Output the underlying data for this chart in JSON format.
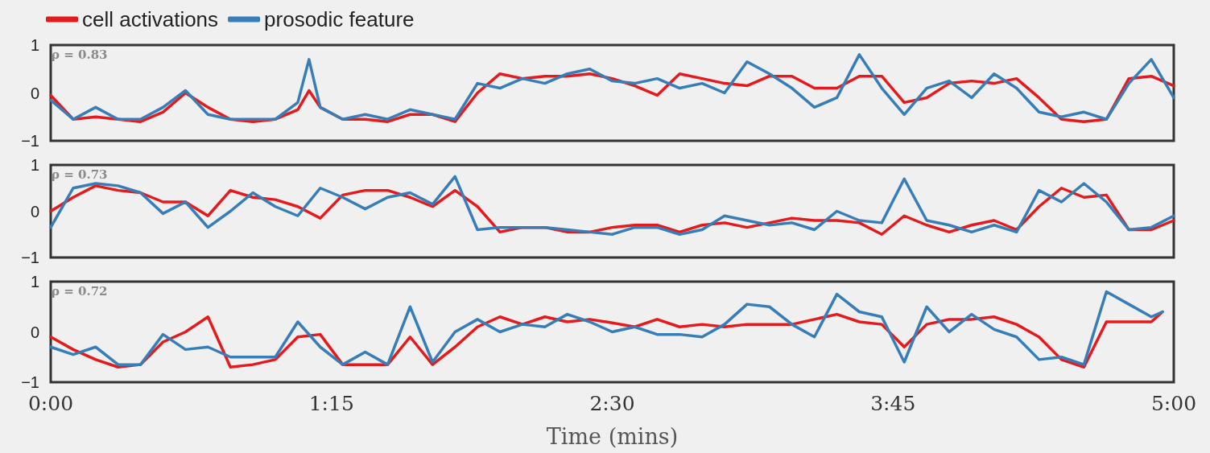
{
  "chart_data": [
    {
      "type": "line",
      "legend": "top left",
      "marker": "none",
      "line_style": "solid",
      "tick_labels": "y",
      "annotations": [
        "ρ = 0.83"
      ],
      "x": [
        0,
        0.1,
        0.2,
        0.3,
        0.4,
        0.5,
        0.6,
        0.7,
        0.8,
        0.9,
        1.0,
        1.1,
        1.15,
        1.2,
        1.3,
        1.4,
        1.5,
        1.6,
        1.7,
        1.8,
        1.9,
        2.0,
        2.1,
        2.2,
        2.3,
        2.4,
        2.5,
        2.6,
        2.7,
        2.8,
        2.9,
        3.0,
        3.1,
        3.2,
        3.3,
        3.4,
        3.5,
        3.6,
        3.7,
        3.8,
        3.9,
        4.0,
        4.1,
        4.2,
        4.3,
        4.4,
        4.5,
        4.6,
        4.7,
        4.8,
        4.9,
        5.0
      ],
      "xlim": [
        0,
        5
      ],
      "ylim": [
        -1,
        1
      ],
      "yticks": [
        -1,
        0,
        1
      ],
      "series": [
        {
          "name": "cell activations",
          "color": "#e41a1c",
          "values": [
            -0.05,
            -0.55,
            -0.5,
            -0.55,
            -0.6,
            -0.4,
            0.0,
            -0.3,
            -0.55,
            -0.6,
            -0.55,
            -0.35,
            0.05,
            -0.3,
            -0.55,
            -0.55,
            -0.6,
            -0.45,
            -0.45,
            -0.6,
            0.0,
            0.4,
            0.3,
            0.35,
            0.35,
            0.4,
            0.3,
            0.15,
            -0.05,
            0.4,
            0.3,
            0.2,
            0.15,
            0.35,
            0.35,
            0.1,
            0.1,
            0.35,
            0.35,
            -0.2,
            -0.1,
            0.2,
            0.25,
            0.2,
            0.3,
            -0.1,
            -0.55,
            -0.6,
            -0.55,
            0.3,
            0.35,
            0.15
          ]
        },
        {
          "name": "prosodic feature",
          "color": "#377eb8",
          "values": [
            -0.15,
            -0.55,
            -0.3,
            -0.55,
            -0.55,
            -0.3,
            0.05,
            -0.45,
            -0.55,
            -0.55,
            -0.55,
            -0.2,
            0.7,
            -0.3,
            -0.55,
            -0.45,
            -0.55,
            -0.35,
            -0.45,
            -0.55,
            0.2,
            0.1,
            0.3,
            0.2,
            0.4,
            0.5,
            0.25,
            0.2,
            0.3,
            0.1,
            0.2,
            0.0,
            0.65,
            0.4,
            0.1,
            -0.3,
            -0.1,
            0.8,
            0.1,
            -0.45,
            0.1,
            0.25,
            -0.1,
            0.4,
            0.1,
            -0.4,
            -0.5,
            -0.4,
            -0.55,
            0.2,
            0.7,
            -0.1
          ]
        }
      ]
    },
    {
      "type": "line",
      "marker": "none",
      "line_style": "solid",
      "tick_labels": "y",
      "annotations": [
        "ρ = 0.73"
      ],
      "x": [
        0,
        0.1,
        0.2,
        0.3,
        0.4,
        0.5,
        0.6,
        0.7,
        0.8,
        0.9,
        1.0,
        1.1,
        1.2,
        1.3,
        1.4,
        1.5,
        1.6,
        1.7,
        1.8,
        1.9,
        2.0,
        2.1,
        2.2,
        2.3,
        2.4,
        2.5,
        2.6,
        2.7,
        2.8,
        2.9,
        3.0,
        3.1,
        3.2,
        3.3,
        3.4,
        3.5,
        3.6,
        3.7,
        3.8,
        3.9,
        4.0,
        4.1,
        4.2,
        4.3,
        4.4,
        4.5,
        4.6,
        4.7,
        4.8,
        4.9,
        5.0
      ],
      "xlim": [
        0,
        5
      ],
      "ylim": [
        -1,
        1
      ],
      "yticks": [
        -1,
        0,
        1
      ],
      "series": [
        {
          "color": "#e41a1c",
          "values": [
            0.0,
            0.3,
            0.55,
            0.45,
            0.4,
            0.2,
            0.2,
            -0.1,
            0.45,
            0.3,
            0.25,
            0.1,
            -0.15,
            0.35,
            0.45,
            0.45,
            0.3,
            0.1,
            0.45,
            0.1,
            -0.45,
            -0.35,
            -0.35,
            -0.45,
            -0.45,
            -0.35,
            -0.3,
            -0.3,
            -0.45,
            -0.3,
            -0.25,
            -0.35,
            -0.25,
            -0.15,
            -0.2,
            -0.2,
            -0.25,
            -0.5,
            -0.1,
            -0.3,
            -0.45,
            -0.3,
            -0.2,
            -0.4,
            0.1,
            0.5,
            0.3,
            0.35,
            -0.4,
            -0.4,
            -0.2
          ]
        },
        {
          "color": "#377eb8",
          "values": [
            -0.35,
            0.5,
            0.6,
            0.55,
            0.4,
            -0.05,
            0.2,
            -0.35,
            0.0,
            0.4,
            0.1,
            -0.1,
            0.5,
            0.3,
            0.05,
            0.3,
            0.4,
            0.15,
            0.75,
            -0.4,
            -0.35,
            -0.35,
            -0.35,
            -0.4,
            -0.45,
            -0.5,
            -0.35,
            -0.35,
            -0.5,
            -0.4,
            -0.1,
            -0.2,
            -0.3,
            -0.25,
            -0.4,
            0.0,
            -0.2,
            -0.25,
            0.7,
            -0.2,
            -0.3,
            -0.45,
            -0.3,
            -0.45,
            0.45,
            0.2,
            0.6,
            0.2,
            -0.4,
            -0.35,
            -0.1
          ]
        }
      ]
    },
    {
      "type": "line",
      "marker": "none",
      "line_style": "solid",
      "xlabel": "Time (mins)",
      "annotations": [
        "ρ = 0.72"
      ],
      "x": [
        0,
        0.1,
        0.2,
        0.3,
        0.4,
        0.5,
        0.6,
        0.7,
        0.8,
        0.9,
        1.0,
        1.1,
        1.2,
        1.3,
        1.4,
        1.5,
        1.6,
        1.7,
        1.8,
        1.9,
        2.0,
        2.1,
        2.2,
        2.3,
        2.4,
        2.5,
        2.6,
        2.7,
        2.8,
        2.9,
        3.0,
        3.1,
        3.2,
        3.3,
        3.4,
        3.5,
        3.6,
        3.7,
        3.8,
        3.9,
        4.0,
        4.1,
        4.2,
        4.3,
        4.4,
        4.5,
        4.6,
        4.7,
        4.8,
        4.9,
        4.95
      ],
      "xlim": [
        0,
        5
      ],
      "xticks": [
        {
          "value": 0,
          "label": "0:00"
        },
        {
          "value": 1.25,
          "label": "1:15"
        },
        {
          "value": 2.5,
          "label": "2:30"
        },
        {
          "value": 3.75,
          "label": "3:45"
        },
        {
          "value": 5,
          "label": "5:00"
        }
      ],
      "ylim": [
        -1,
        1
      ],
      "yticks": [
        -1,
        0,
        1
      ],
      "series": [
        {
          "color": "#e41a1c",
          "values": [
            -0.1,
            -0.35,
            -0.55,
            -0.7,
            -0.65,
            -0.2,
            0.0,
            0.3,
            -0.7,
            -0.65,
            -0.55,
            -0.1,
            -0.05,
            -0.65,
            -0.65,
            -0.65,
            -0.1,
            -0.65,
            -0.3,
            0.1,
            0.3,
            0.15,
            0.3,
            0.2,
            0.25,
            0.18,
            0.1,
            0.25,
            0.1,
            0.15,
            0.1,
            0.15,
            0.15,
            0.15,
            0.25,
            0.35,
            0.2,
            0.15,
            -0.3,
            0.15,
            0.25,
            0.25,
            0.3,
            0.15,
            -0.1,
            -0.55,
            -0.7,
            0.2,
            0.2,
            0.2,
            0.4
          ]
        },
        {
          "color": "#377eb8",
          "values": [
            -0.3,
            -0.45,
            -0.3,
            -0.65,
            -0.65,
            -0.05,
            -0.35,
            -0.3,
            -0.5,
            -0.5,
            -0.5,
            0.2,
            -0.3,
            -0.65,
            -0.4,
            -0.65,
            0.5,
            -0.6,
            0.0,
            0.25,
            0.0,
            0.15,
            0.1,
            0.35,
            0.2,
            0.0,
            0.1,
            -0.05,
            -0.05,
            -0.1,
            0.15,
            0.55,
            0.5,
            0.15,
            -0.1,
            0.75,
            0.4,
            0.3,
            -0.6,
            0.5,
            0.0,
            0.35,
            0.05,
            -0.1,
            -0.55,
            -0.5,
            -0.65,
            0.8,
            0.55,
            0.3,
            0.4
          ]
        }
      ]
    }
  ]
}
